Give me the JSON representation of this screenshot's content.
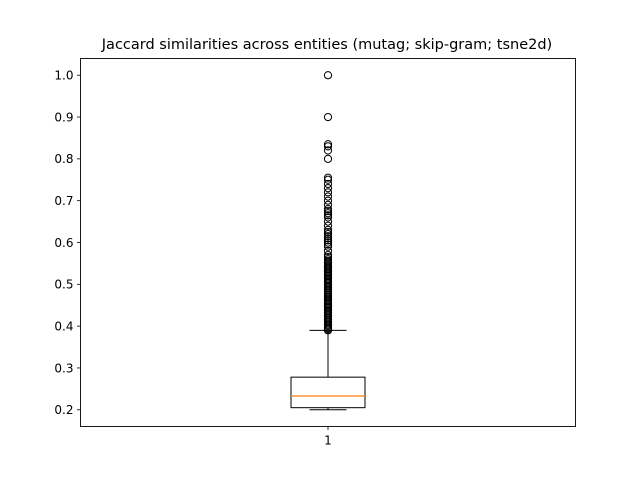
{
  "chart_data": {
    "type": "box",
    "title": "Jaccard similarities across entities (mutag; skip-gram; tsne2d)",
    "xlabel": "",
    "ylabel": "",
    "ylim": [
      0.16,
      1.04
    ],
    "yticks": [
      0.2,
      0.3,
      0.4,
      0.5,
      0.6,
      0.7,
      0.8,
      0.9,
      1.0
    ],
    "ytick_labels": [
      "0.2",
      "0.3",
      "0.4",
      "0.5",
      "0.6",
      "0.7",
      "0.8",
      "0.9",
      "1.0"
    ],
    "categories": [
      "1"
    ],
    "grid": false,
    "box": {
      "whisker_low": 0.2,
      "q1": 0.205,
      "median": 0.233,
      "q3": 0.278,
      "whisker_high": 0.39,
      "outliers": [
        0.39,
        0.393,
        0.396,
        0.4,
        0.403,
        0.406,
        0.41,
        0.413,
        0.416,
        0.42,
        0.423,
        0.426,
        0.43,
        0.433,
        0.436,
        0.44,
        0.443,
        0.446,
        0.45,
        0.453,
        0.456,
        0.46,
        0.463,
        0.466,
        0.47,
        0.473,
        0.476,
        0.48,
        0.483,
        0.486,
        0.49,
        0.493,
        0.496,
        0.5,
        0.503,
        0.506,
        0.51,
        0.513,
        0.516,
        0.52,
        0.523,
        0.526,
        0.53,
        0.533,
        0.536,
        0.54,
        0.543,
        0.546,
        0.55,
        0.553,
        0.556,
        0.56,
        0.565,
        0.57,
        0.58,
        0.59,
        0.595,
        0.6,
        0.605,
        0.61,
        0.615,
        0.62,
        0.625,
        0.63,
        0.64,
        0.65,
        0.66,
        0.665,
        0.67,
        0.675,
        0.68,
        0.69,
        0.7,
        0.71,
        0.72,
        0.73,
        0.74,
        0.75,
        0.755,
        0.8,
        0.82,
        0.83,
        0.835,
        0.9,
        1.0
      ]
    },
    "colors": {
      "median": "#ff7f0e",
      "stroke": "#000000"
    }
  }
}
